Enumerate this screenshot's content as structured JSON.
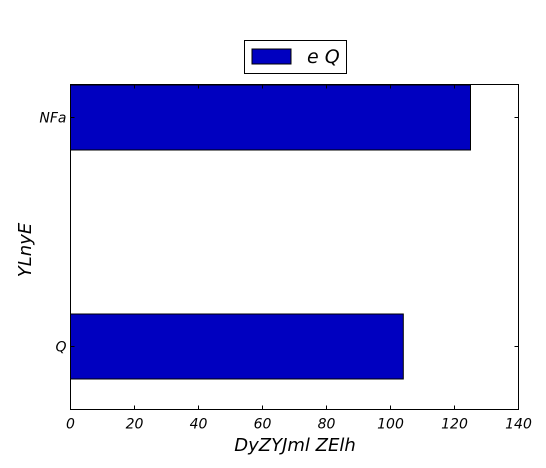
{
  "chart_data": {
    "type": "bar",
    "orientation": "horizontal",
    "categories": [
      "Q",
      "NFa"
    ],
    "series": [
      {
        "name": "e Q",
        "values": [
          104,
          125
        ],
        "color": "#0000c0"
      }
    ],
    "xlabel": "DyZYJml ZElh",
    "ylabel": "YLnyE",
    "xlim": [
      0,
      140
    ],
    "xticks": [
      0,
      20,
      40,
      60,
      80,
      100,
      120,
      140
    ],
    "grid": false,
    "legend_position": "top-center"
  }
}
